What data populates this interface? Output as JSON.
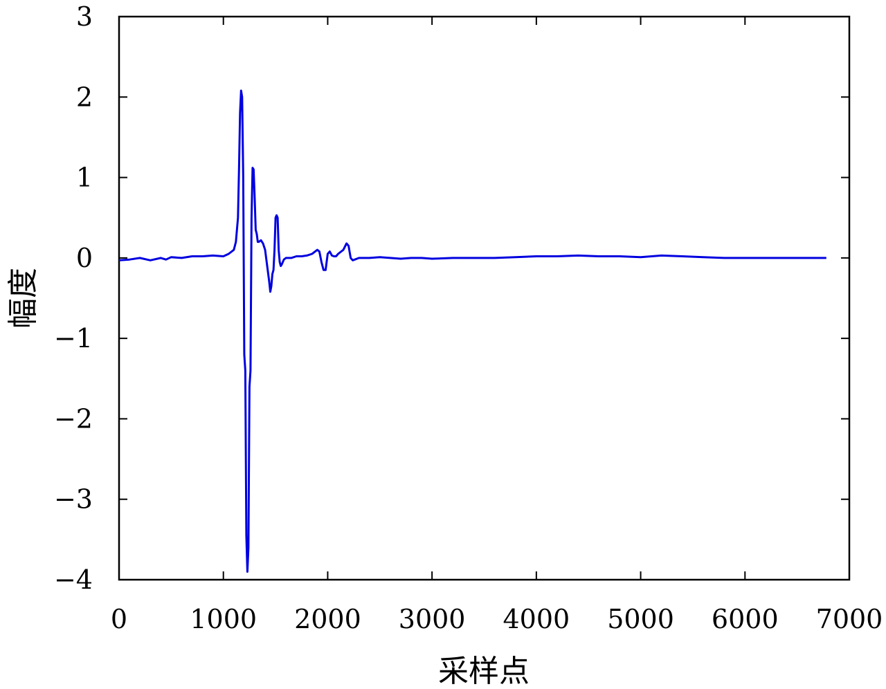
{
  "chart_data": {
    "type": "line",
    "title": "",
    "xlabel": "采样点",
    "ylabel": "幅度",
    "xlim": [
      0,
      7000
    ],
    "ylim": [
      -4,
      3
    ],
    "xticks": [
      0,
      1000,
      2000,
      3000,
      4000,
      5000,
      6000,
      7000
    ],
    "xtick_labels": [
      "0",
      "1000",
      "2000",
      "3000",
      "4000",
      "5000",
      "6000",
      "7000"
    ],
    "yticks": [
      3,
      2,
      1,
      0,
      -1,
      -2,
      -3,
      -4
    ],
    "ytick_labels": [
      "3",
      "2",
      "1",
      "0",
      "−1",
      "−2",
      "−3",
      "−4"
    ],
    "grid": false,
    "line_color": "#0000e0",
    "series": [
      {
        "x": [
          0,
          100,
          200,
          300,
          400,
          450,
          500,
          600,
          700,
          800,
          900,
          1000,
          1050,
          1100,
          1120,
          1140,
          1150,
          1160,
          1170,
          1180,
          1190,
          1200,
          1210,
          1220,
          1230,
          1240,
          1250,
          1260,
          1270,
          1280,
          1290,
          1300,
          1310,
          1320,
          1330,
          1340,
          1360,
          1380,
          1400,
          1420,
          1440,
          1450,
          1460,
          1470,
          1480,
          1490,
          1500,
          1510,
          1520,
          1530,
          1540,
          1550,
          1560,
          1580,
          1600,
          1650,
          1700,
          1750,
          1800,
          1850,
          1900,
          1920,
          1940,
          1960,
          1980,
          2000,
          2020,
          2040,
          2060,
          2080,
          2100,
          2150,
          2180,
          2200,
          2220,
          2240,
          2260,
          2300,
          2400,
          2500,
          2600,
          2700,
          2800,
          2900,
          3000,
          3200,
          3400,
          3600,
          3800,
          4000,
          4200,
          4400,
          4600,
          4800,
          5000,
          5200,
          5400,
          5600,
          5800,
          6000,
          6200,
          6400,
          6600,
          6780
        ],
        "y": [
          -0.03,
          -0.02,
          0.0,
          -0.03,
          0.0,
          -0.02,
          0.01,
          0.0,
          0.02,
          0.02,
          0.03,
          0.02,
          0.05,
          0.1,
          0.2,
          0.5,
          1.1,
          1.8,
          2.08,
          2.0,
          1.0,
          -1.2,
          -1.4,
          -3.45,
          -3.9,
          -3.6,
          -1.6,
          -1.4,
          0.5,
          1.12,
          1.1,
          0.75,
          0.35,
          0.3,
          0.2,
          0.2,
          0.22,
          0.18,
          0.1,
          -0.1,
          -0.3,
          -0.42,
          -0.35,
          -0.2,
          -0.15,
          0.1,
          0.5,
          0.53,
          0.5,
          0.1,
          -0.05,
          -0.1,
          -0.08,
          -0.02,
          0.0,
          0.0,
          0.02,
          0.02,
          0.03,
          0.05,
          0.1,
          0.08,
          -0.05,
          -0.15,
          -0.15,
          0.05,
          0.08,
          0.03,
          0.02,
          0.02,
          0.05,
          0.1,
          0.18,
          0.15,
          0.0,
          -0.03,
          -0.02,
          0.0,
          0.0,
          0.01,
          0.0,
          -0.01,
          0.0,
          0.0,
          -0.01,
          0.0,
          0.0,
          0.0,
          0.01,
          0.02,
          0.02,
          0.03,
          0.02,
          0.02,
          0.01,
          0.03,
          0.02,
          0.01,
          0.0,
          0.0,
          0.0,
          0.0,
          0.0,
          0.0
        ]
      }
    ]
  }
}
